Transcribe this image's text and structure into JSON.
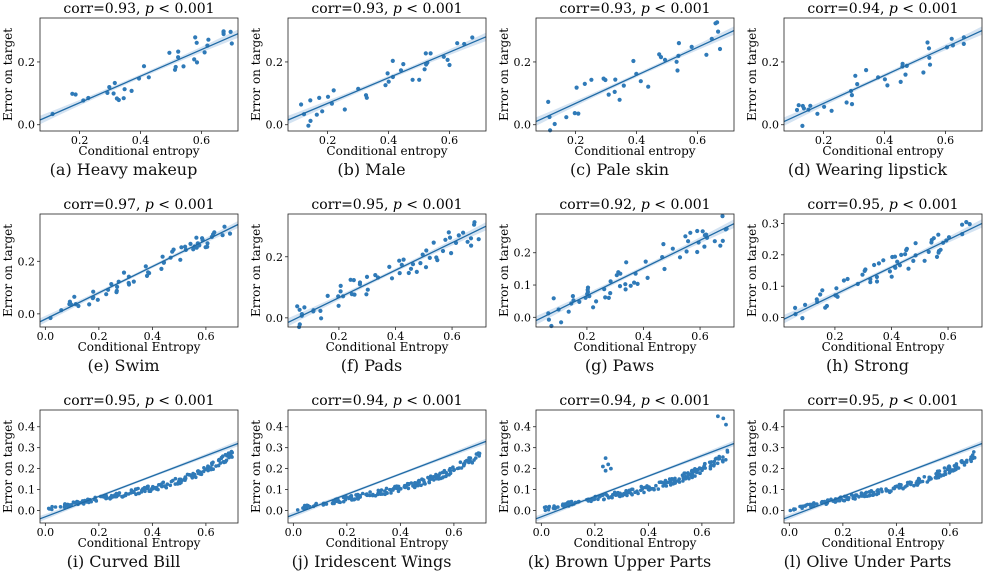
{
  "figure": {
    "chart_data": [
      {
        "type": "scatter",
        "caption": "(a) Heavy makeup",
        "title_corr": "corr=0.93, ",
        "title_p": "p",
        "title_rest": " < 0.001",
        "xlabel": "Conditional entropy",
        "ylabel": "Error on target",
        "xlim": [
          0.07,
          0.72
        ],
        "ylim": [
          -0.02,
          0.34
        ],
        "xticks": [
          0.2,
          0.4,
          0.6
        ],
        "yticks": [
          0.0,
          0.2
        ],
        "fit": {
          "x": [
            0.07,
            0.72
          ],
          "y": [
            0.015,
            0.29
          ]
        },
        "seed": 1,
        "n": 35,
        "noise": 0.03,
        "dmin": 0.1,
        "dmax": 0.7
      },
      {
        "type": "scatter",
        "caption": "(b) Male",
        "title_corr": "corr=0.93, ",
        "title_p": "p",
        "title_rest": " < 0.001",
        "xlabel": "Conditional entropy",
        "ylabel": "Error on target",
        "xlim": [
          0.07,
          0.72
        ],
        "ylim": [
          -0.02,
          0.34
        ],
        "xticks": [
          0.2,
          0.4,
          0.6
        ],
        "yticks": [
          0.0,
          0.2
        ],
        "fit": {
          "x": [
            0.07,
            0.72
          ],
          "y": [
            0.015,
            0.28
          ]
        },
        "seed": 2,
        "n": 35,
        "noise": 0.03,
        "dmin": 0.1,
        "dmax": 0.7
      },
      {
        "type": "scatter",
        "caption": "(c) Pale skin",
        "title_corr": "corr=0.93, ",
        "title_p": "p",
        "title_rest": " < 0.001",
        "xlabel": "Conditional entropy",
        "ylabel": "Error on target",
        "xlim": [
          0.07,
          0.72
        ],
        "ylim": [
          -0.02,
          0.34
        ],
        "xticks": [
          0.2,
          0.4,
          0.6
        ],
        "yticks": [
          0.0,
          0.2
        ],
        "fit": {
          "x": [
            0.07,
            0.72
          ],
          "y": [
            0.01,
            0.3
          ]
        },
        "seed": 3,
        "n": 35,
        "noise": 0.035,
        "dmin": 0.1,
        "dmax": 0.7
      },
      {
        "type": "scatter",
        "caption": "(d) Wearing lipstick",
        "title_corr": "corr=0.94, ",
        "title_p": "p",
        "title_rest": " < 0.001",
        "xlabel": "Conditional entropy",
        "ylabel": "Error on target",
        "xlim": [
          0.07,
          0.72
        ],
        "ylim": [
          -0.02,
          0.34
        ],
        "xticks": [
          0.2,
          0.4,
          0.6
        ],
        "yticks": [
          0.0,
          0.2
        ],
        "fit": {
          "x": [
            0.07,
            0.72
          ],
          "y": [
            0.01,
            0.3
          ]
        },
        "seed": 4,
        "n": 35,
        "noise": 0.03,
        "dmin": 0.1,
        "dmax": 0.7
      },
      {
        "type": "scatter",
        "caption": "(e) Swim",
        "title_corr": "corr=0.97, ",
        "title_p": "p",
        "title_rest": " < 0.001",
        "xlabel": "Conditional Entropy",
        "ylabel": "Error on target",
        "xlim": [
          -0.02,
          0.72
        ],
        "ylim": [
          -0.05,
          0.38
        ],
        "xticks": [
          0.0,
          0.2,
          0.4,
          0.6
        ],
        "yticks": [
          0.0,
          0.2
        ],
        "fit": {
          "x": [
            -0.02,
            0.72
          ],
          "y": [
            -0.03,
            0.34
          ]
        },
        "seed": 5,
        "n": 60,
        "noise": 0.02,
        "dmin": 0.0,
        "dmax": 0.7
      },
      {
        "type": "scatter",
        "caption": "(f) Pads",
        "title_corr": "corr=0.95, ",
        "title_p": "p",
        "title_rest": " < 0.001",
        "xlabel": "Conditional Entropy",
        "ylabel": "Error on target",
        "xlim": [
          0.02,
          0.72
        ],
        "ylim": [
          -0.03,
          0.34
        ],
        "xticks": [
          0.2,
          0.4,
          0.6
        ],
        "yticks": [
          0.0,
          0.2
        ],
        "fit": {
          "x": [
            0.02,
            0.72
          ],
          "y": [
            -0.015,
            0.3
          ]
        },
        "seed": 6,
        "n": 60,
        "noise": 0.025,
        "dmin": 0.05,
        "dmax": 0.7
      },
      {
        "type": "scatter",
        "caption": "(g) Paws",
        "title_corr": "corr=0.92, ",
        "title_p": "p",
        "title_rest": " < 0.001",
        "xlabel": "Conditional Entropy",
        "ylabel": "Error on target",
        "xlim": [
          0.02,
          0.72
        ],
        "ylim": [
          -0.03,
          0.32
        ],
        "xticks": [
          0.2,
          0.4,
          0.6
        ],
        "yticks": [
          0.0,
          0.1,
          0.2
        ],
        "fit": {
          "x": [
            0.02,
            0.72
          ],
          "y": [
            -0.01,
            0.29
          ]
        },
        "seed": 7,
        "n": 60,
        "noise": 0.03,
        "dmin": 0.05,
        "dmax": 0.7
      },
      {
        "type": "scatter",
        "caption": "(h) Strong",
        "title_corr": "corr=0.95, ",
        "title_p": "p",
        "title_rest": " < 0.001",
        "xlabel": "Conditional Entropy",
        "ylabel": "Error on target",
        "xlim": [
          0.02,
          0.72
        ],
        "ylim": [
          -0.03,
          0.33
        ],
        "xticks": [
          0.2,
          0.4,
          0.6
        ],
        "yticks": [
          0.0,
          0.1,
          0.2,
          0.3
        ],
        "fit": {
          "x": [
            0.02,
            0.72
          ],
          "y": [
            -0.005,
            0.3
          ]
        },
        "seed": 8,
        "n": 60,
        "noise": 0.025,
        "dmin": 0.05,
        "dmax": 0.7
      },
      {
        "type": "scatter",
        "caption": "(i) Curved Bill",
        "title_corr": "corr=0.95, ",
        "title_p": "p",
        "title_rest": " < 0.001",
        "xlabel": "Conditional Entropy",
        "ylabel": "Error on target",
        "xlim": [
          -0.02,
          0.72
        ],
        "ylim": [
          -0.06,
          0.48
        ],
        "xticks": [
          0.0,
          0.2,
          0.4,
          0.6
        ],
        "yticks": [
          0.0,
          0.1,
          0.2,
          0.3,
          0.4
        ],
        "fit": {
          "x": [
            -0.02,
            0.72
          ],
          "y": [
            -0.04,
            0.32
          ]
        },
        "seed": 9,
        "n": 200,
        "noise": 0.018,
        "dmin": 0.0,
        "dmax": 0.7,
        "curve": true
      },
      {
        "type": "scatter",
        "caption": "(j) Iridescent Wings",
        "title_corr": "corr=0.94, ",
        "title_p": "p",
        "title_rest": " < 0.001",
        "xlabel": "Conditional Entropy",
        "ylabel": "Error on target",
        "xlim": [
          -0.02,
          0.72
        ],
        "ylim": [
          -0.06,
          0.48
        ],
        "xticks": [
          0.0,
          0.2,
          0.4,
          0.6
        ],
        "yticks": [
          0.0,
          0.1,
          0.2,
          0.3,
          0.4
        ],
        "fit": {
          "x": [
            -0.02,
            0.72
          ],
          "y": [
            -0.03,
            0.33
          ]
        },
        "seed": 10,
        "n": 200,
        "noise": 0.018,
        "dmin": 0.0,
        "dmax": 0.7,
        "curve": true
      },
      {
        "type": "scatter",
        "caption": "(k) Brown Upper Parts",
        "title_corr": "corr=0.94, ",
        "title_p": "p",
        "title_rest": " < 0.001",
        "xlabel": "Conditional Entropy",
        "ylabel": "Error on target",
        "xlim": [
          -0.02,
          0.72
        ],
        "ylim": [
          -0.06,
          0.48
        ],
        "xticks": [
          0.0,
          0.2,
          0.4,
          0.6
        ],
        "yticks": [
          0.0,
          0.1,
          0.2,
          0.3,
          0.4
        ],
        "fit": {
          "x": [
            -0.02,
            0.72
          ],
          "y": [
            -0.04,
            0.32
          ]
        },
        "seed": 11,
        "n": 200,
        "noise": 0.02,
        "dmin": 0.0,
        "dmax": 0.7,
        "curve": true,
        "outliers": [
          [
            0.24,
            0.25
          ],
          [
            0.25,
            0.22
          ],
          [
            0.23,
            0.21
          ],
          [
            0.26,
            0.2
          ],
          [
            0.24,
            0.19
          ],
          [
            0.66,
            0.45
          ],
          [
            0.68,
            0.44
          ],
          [
            0.69,
            0.41
          ]
        ]
      },
      {
        "type": "scatter",
        "caption": "(l) Olive Under Parts",
        "title_corr": "corr=0.95, ",
        "title_p": "p",
        "title_rest": " < 0.001",
        "xlabel": "Conditional Entropy",
        "ylabel": "Error on target",
        "xlim": [
          -0.02,
          0.72
        ],
        "ylim": [
          -0.06,
          0.48
        ],
        "xticks": [
          0.0,
          0.2,
          0.4,
          0.6
        ],
        "yticks": [
          0.0,
          0.1,
          0.2,
          0.3,
          0.4
        ],
        "fit": {
          "x": [
            -0.02,
            0.72
          ],
          "y": [
            -0.04,
            0.32
          ]
        },
        "seed": 12,
        "n": 200,
        "noise": 0.018,
        "dmin": 0.0,
        "dmax": 0.7,
        "curve": true
      }
    ],
    "colors": {
      "point": "#2f7ab8",
      "line": "#1f6aa5",
      "band": "#c9dcef"
    }
  }
}
